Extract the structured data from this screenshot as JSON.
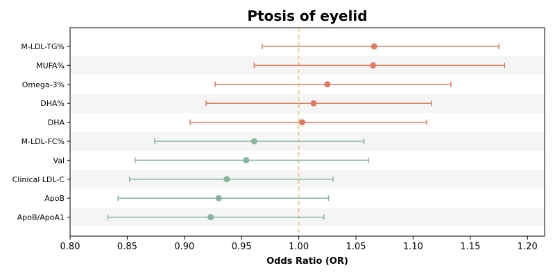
{
  "chart_data": {
    "type": "forest",
    "title": "Ptosis of eyelid",
    "xlabel": "Odds Ratio (OR)",
    "ylabel": "",
    "xlim": [
      0.8,
      1.215
    ],
    "x_ticks": [
      "0.80",
      "0.85",
      "0.90",
      "0.95",
      "1.00",
      "1.05",
      "1.10",
      "1.15",
      "1.20"
    ],
    "reference_line": 1.0,
    "reference_line_style": "dashed",
    "grid": false,
    "alternating_row_shading": true,
    "colors": {
      "positive": "#e07b62",
      "negative": "#86b59e",
      "reference": "#f2c27e",
      "row_shade": "#f5f5f5"
    },
    "rows": [
      {
        "label": "M-LDL-TG%",
        "or": 1.066,
        "ci_low": 0.968,
        "ci_high": 1.175
      },
      {
        "label": "MUFA%",
        "or": 1.065,
        "ci_low": 0.961,
        "ci_high": 1.18
      },
      {
        "label": "Omega-3%",
        "or": 1.025,
        "ci_low": 0.927,
        "ci_high": 1.133
      },
      {
        "label": "DHA%",
        "or": 1.013,
        "ci_low": 0.919,
        "ci_high": 1.116
      },
      {
        "label": "DHA",
        "or": 1.003,
        "ci_low": 0.905,
        "ci_high": 1.112
      },
      {
        "label": "M-LDL-FC%",
        "or": 0.961,
        "ci_low": 0.874,
        "ci_high": 1.057
      },
      {
        "label": "Val",
        "or": 0.954,
        "ci_low": 0.857,
        "ci_high": 1.061
      },
      {
        "label": "Clinical LDL-C",
        "or": 0.937,
        "ci_low": 0.852,
        "ci_high": 1.03
      },
      {
        "label": "ApoB",
        "or": 0.93,
        "ci_low": 0.842,
        "ci_high": 1.026
      },
      {
        "label": "ApoB/ApoA1",
        "or": 0.923,
        "ci_low": 0.833,
        "ci_high": 1.022
      }
    ]
  }
}
